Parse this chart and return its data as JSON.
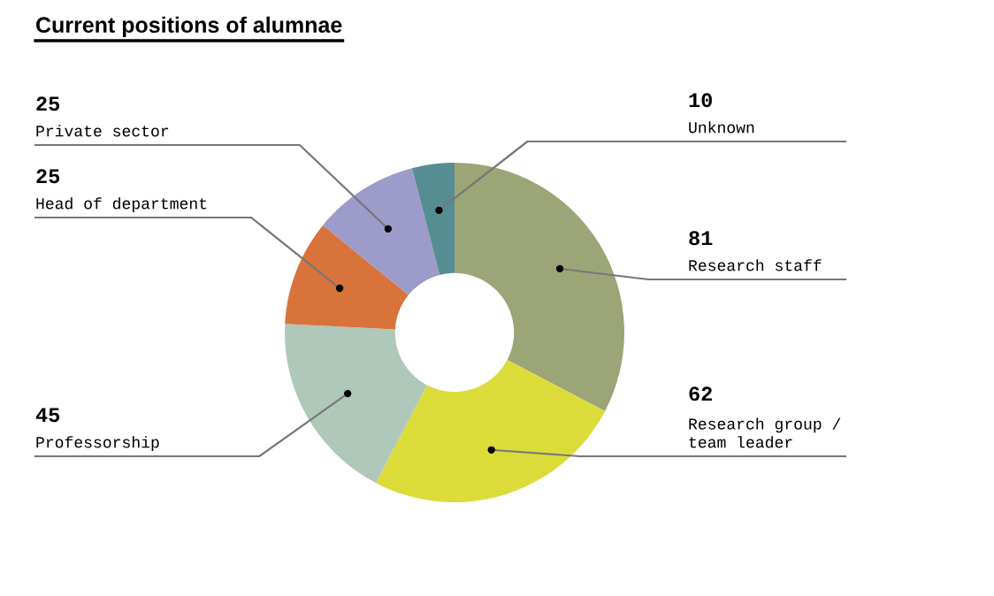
{
  "chart_data": {
    "type": "donut",
    "title": "Current positions of alumnae",
    "categories": [
      "Research staff",
      "Research group /\nteam leader",
      "Professorship",
      "Head of department",
      "Private sector",
      "Unknown"
    ],
    "values": [
      81,
      62,
      45,
      25,
      25,
      10
    ],
    "colors": [
      "#9ca577",
      "#dbdc3a",
      "#b0c8ba",
      "#d9733c",
      "#9d9bc9",
      "#568d93"
    ],
    "data_labels": true
  }
}
